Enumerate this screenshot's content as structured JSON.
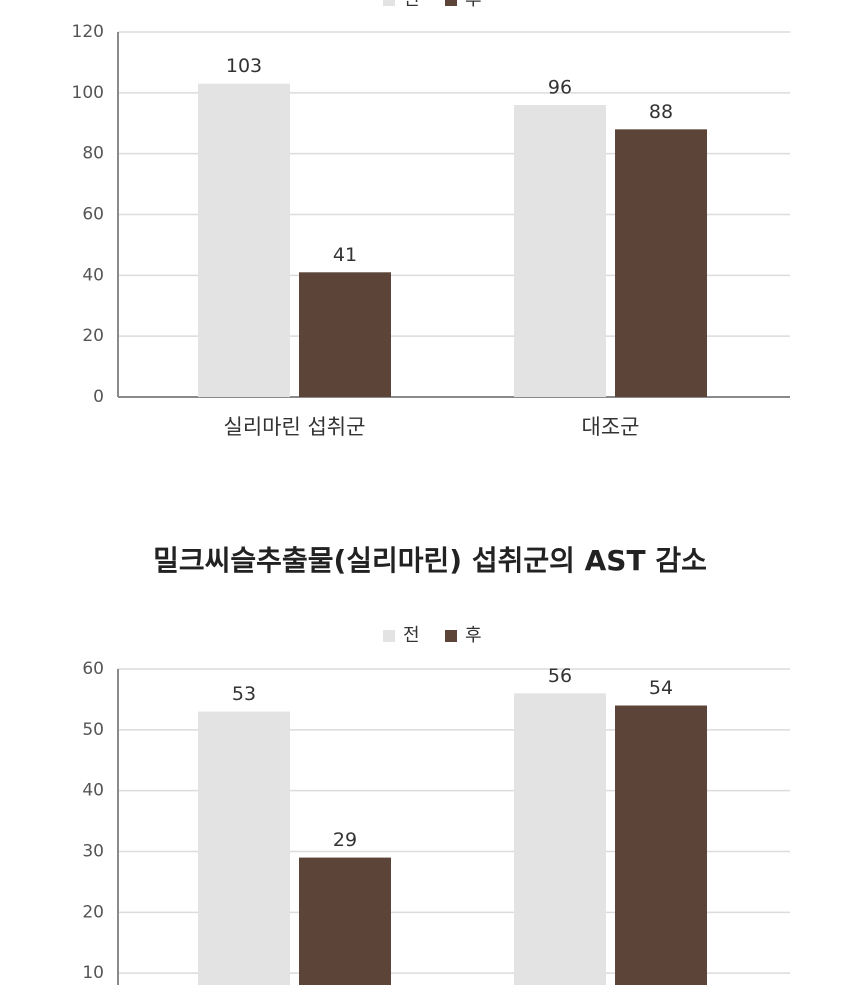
{
  "chart_data": [
    {
      "type": "bar",
      "categories": [
        "실리마린 섭취군",
        "대조군"
      ],
      "series": [
        {
          "name": "전",
          "color": "#e3e3e3",
          "values": [
            103,
            96
          ]
        },
        {
          "name": "후",
          "color": "#5c4538",
          "values": [
            41,
            88
          ]
        }
      ],
      "ylim": [
        0,
        120
      ],
      "yticks": [
        0,
        20,
        40,
        60,
        80,
        100,
        120
      ],
      "grid": true,
      "legend": "top"
    },
    {
      "type": "bar",
      "title": "밀크씨슬추출물(실리마린) 섭취군의 AST 감소",
      "series": [
        {
          "name": "전",
          "color": "#e3e3e3",
          "values": [
            53,
            56
          ]
        },
        {
          "name": "후",
          "color": "#5c4538",
          "values": [
            29,
            54
          ]
        }
      ],
      "ylim": [
        0,
        60
      ],
      "yticks": [
        10,
        20,
        30,
        40,
        50,
        60
      ],
      "grid": true,
      "legend": "top"
    }
  ]
}
